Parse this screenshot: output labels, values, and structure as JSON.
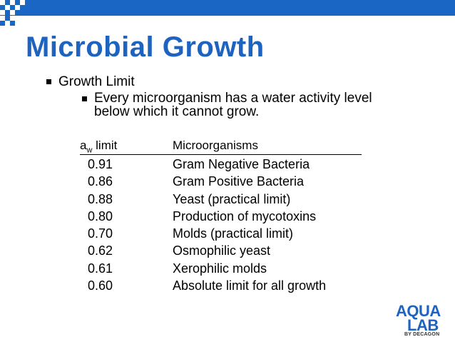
{
  "slide": {
    "title": "Microbial Growth",
    "bullet_level1": "Growth Limit",
    "bullet_level2": "Every microorganism has a water activity level below which it cannot grow."
  },
  "table": {
    "header_col1_main": "a",
    "header_col1_sub": "w",
    "header_col1_rest": " limit",
    "header_col2": "Microorganisms",
    "rows": [
      {
        "aw": "0.91",
        "organism": "Gram Negative Bacteria"
      },
      {
        "aw": "0.86",
        "organism": "Gram Positive Bacteria"
      },
      {
        "aw": "0.88",
        "organism": "Yeast (practical limit)"
      },
      {
        "aw": "0.80",
        "organism": "Production of mycotoxins"
      },
      {
        "aw": "0.70",
        "organism": "Molds (practical limit)"
      },
      {
        "aw": "0.62",
        "organism": "Osmophilic yeast"
      },
      {
        "aw": "0.61",
        "organism": "Xerophilic molds"
      },
      {
        "aw": "0.60",
        "organism": "Absolute limit for all growth"
      }
    ]
  },
  "logo": {
    "line1": "AQUA",
    "line2": "LAB",
    "byline": "BY DECAGON"
  },
  "colors": {
    "accent": "#1f63c0",
    "band": "#1a66c4"
  }
}
